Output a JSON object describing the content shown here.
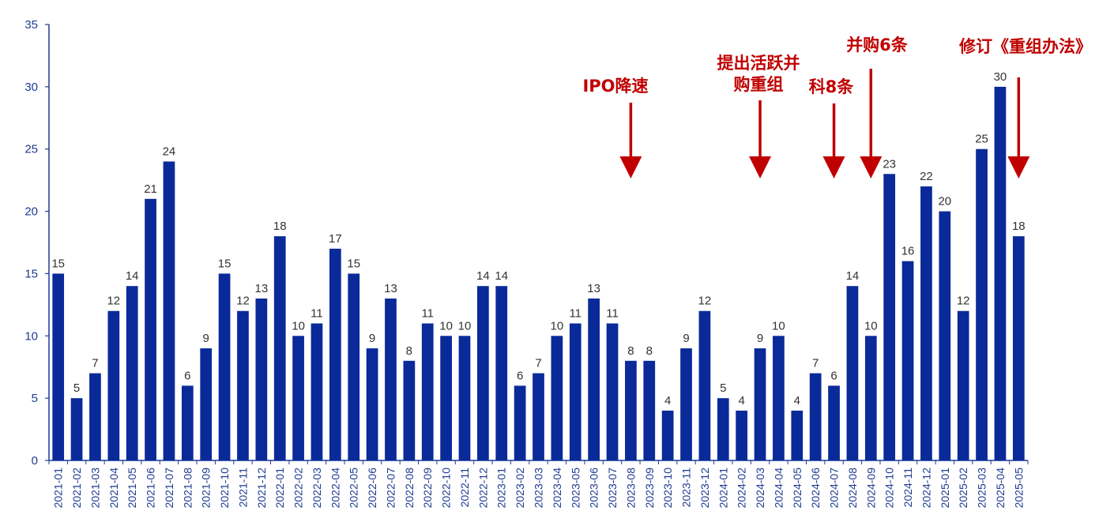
{
  "colors": {
    "bar": "#0a2a99",
    "axis": "#1f3a93",
    "annotation": "#c00000"
  },
  "chart_data": {
    "type": "bar",
    "title": "",
    "xlabel": "",
    "ylabel": "",
    "ylim": [
      0,
      35
    ],
    "yticks": [
      0,
      5,
      10,
      15,
      20,
      25,
      30,
      35
    ],
    "grid": false,
    "categories": [
      "2021-01",
      "2021-02",
      "2021-03",
      "2021-04",
      "2021-05",
      "2021-06",
      "2021-07",
      "2021-08",
      "2021-09",
      "2021-10",
      "2021-11",
      "2021-12",
      "2022-01",
      "2022-02",
      "2022-03",
      "2022-04",
      "2022-05",
      "2022-06",
      "2022-07",
      "2022-08",
      "2022-09",
      "2022-10",
      "2022-11",
      "2022-12",
      "2023-01",
      "2023-02",
      "2023-03",
      "2023-04",
      "2023-05",
      "2023-06",
      "2023-07",
      "2023-08",
      "2023-09",
      "2023-10",
      "2023-11",
      "2023-12",
      "2024-01",
      "2024-02",
      "2024-03",
      "2024-04",
      "2024-05",
      "2024-06",
      "2024-07",
      "2024-08",
      "2024-09",
      "2024-10",
      "2024-11",
      "2024-12",
      "2025-01",
      "2025-02",
      "2025-03",
      "2025-04",
      "2025-05"
    ],
    "values": [
      15,
      5,
      7,
      12,
      14,
      21,
      24,
      6,
      9,
      15,
      12,
      13,
      18,
      10,
      11,
      17,
      15,
      9,
      13,
      8,
      11,
      10,
      10,
      14,
      14,
      6,
      7,
      10,
      11,
      13,
      11,
      8,
      8,
      4,
      9,
      12,
      5,
      4,
      9,
      10,
      4,
      7,
      6,
      14,
      10,
      23,
      16,
      22,
      20,
      12,
      25,
      30,
      18
    ],
    "annotations": [
      {
        "lines": [
          "IPO降速"
        ],
        "at": "2023-08"
      },
      {
        "lines": [
          "提出活跃并",
          "购重组"
        ],
        "at": "2024-03"
      },
      {
        "lines": [
          "科8条"
        ],
        "at": "2024-07"
      },
      {
        "lines": [
          "并购6条"
        ],
        "at": "2024-09"
      },
      {
        "lines": [
          "修订《重组办法》"
        ],
        "at": "2025-05"
      }
    ]
  }
}
